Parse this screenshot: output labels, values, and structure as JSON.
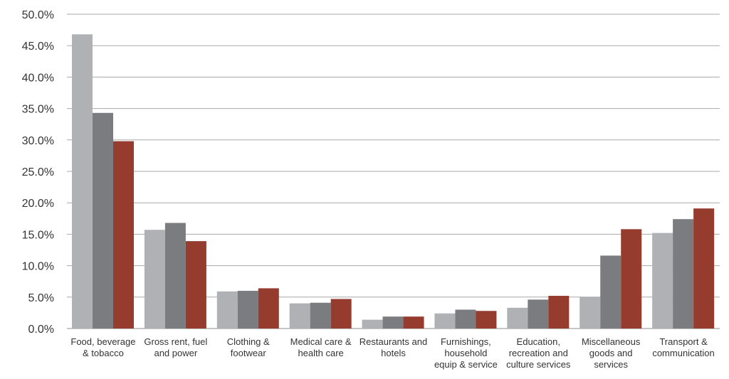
{
  "chart_data": {
    "type": "bar",
    "categories": [
      [
        "Food, beverage",
        "& tobacco"
      ],
      [
        "Gross rent, fuel",
        "and power"
      ],
      [
        "Clothing &",
        "footwear"
      ],
      [
        "Medical care &",
        "health care"
      ],
      [
        "Restaurants and",
        "hotels"
      ],
      [
        "Furnishings,",
        "household",
        "equip & service"
      ],
      [
        "Education,",
        "recreation and",
        "culture services"
      ],
      [
        "Miscellaneous",
        "goods and",
        "services"
      ],
      [
        "Transport &",
        "communication"
      ]
    ],
    "series": [
      {
        "color": "#b0b1b4",
        "values": [
          46.8,
          15.7,
          5.9,
          4.0,
          1.4,
          2.4,
          3.3,
          5.0,
          15.2
        ]
      },
      {
        "color": "#7b7c80",
        "values": [
          34.3,
          16.8,
          6.0,
          4.1,
          1.9,
          3.0,
          4.6,
          11.6,
          17.4
        ]
      },
      {
        "color": "#963c2e",
        "values": [
          29.8,
          13.9,
          6.4,
          4.7,
          1.9,
          2.8,
          5.2,
          15.8,
          19.1
        ]
      }
    ],
    "ylim": [
      0,
      50
    ],
    "yticks": [
      "0.0%",
      "5.0%",
      "10.0%",
      "15.0%",
      "20.0%",
      "25.0%",
      "30.0%",
      "35.0%",
      "40.0%",
      "45.0%",
      "50.0%"
    ],
    "grid": true,
    "legend": "none"
  }
}
